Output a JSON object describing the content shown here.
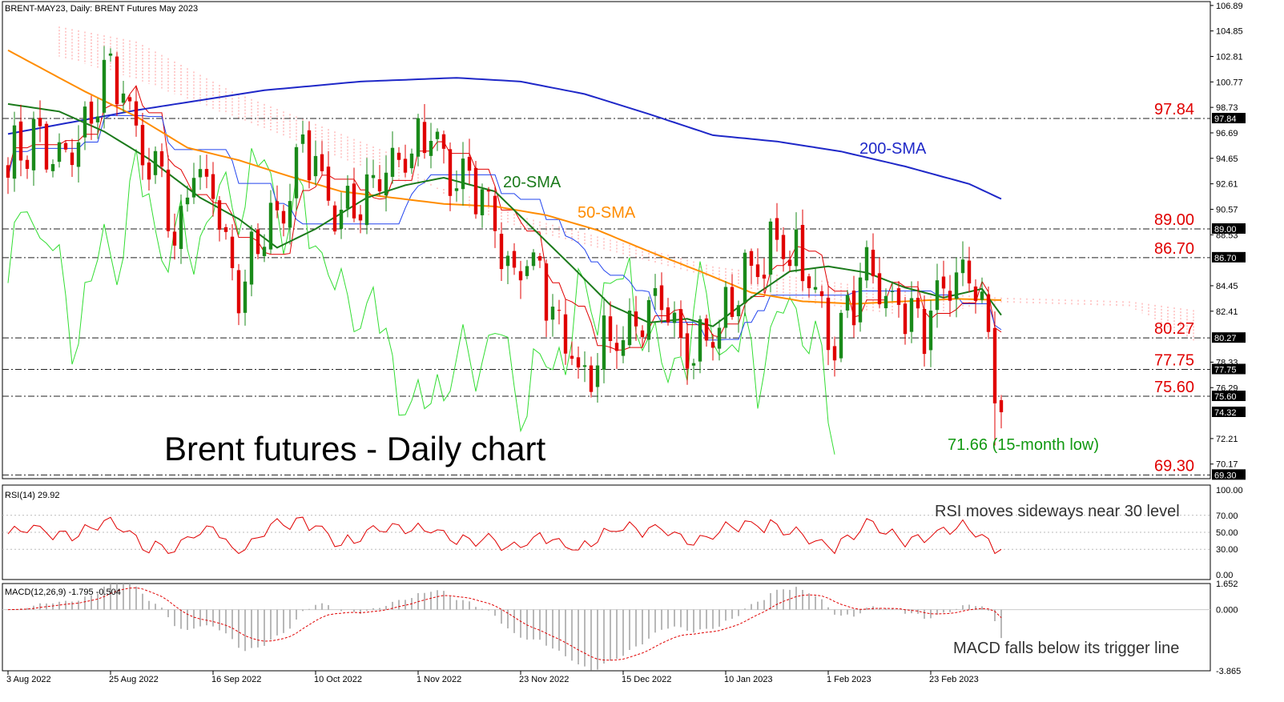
{
  "header": {
    "main_title": "BRENT-MAY23, Daily:  BRENT Futures May 2023",
    "rsi_title": "RSI(14) 29.92",
    "macd_title": "MACD(12,26,9) -1.795 -0.504"
  },
  "annotations": {
    "chart_title": "Brent futures - Daily chart",
    "sma20": "20-SMA",
    "sma50": "50-SMA",
    "sma200": "200-SMA",
    "low_note": "71.66 (15-month low)",
    "rsi_note": "RSI moves sideways near 30 level",
    "macd_note": "MACD falls below its trigger line"
  },
  "colors": {
    "bull": "#1a8a1a",
    "bear": "#e00000",
    "sma20": "#1b7a1b",
    "sma50": "#ff8c00",
    "sma200": "#1f28c8",
    "kijun": "#2244ee",
    "tenkan": "#e00000",
    "chikou": "#33dd33",
    "cloud": "#ff7777",
    "level_text": "#e00000",
    "low_text": "#119911",
    "rsi": "#e00000",
    "macd_signal": "#e00000",
    "macd_hist": "#a0a0a0"
  },
  "chart_data": {
    "type": "candlestick",
    "instrument": "BRENT-MAY23",
    "timeframe": "Daily",
    "price_axis": {
      "ylim": [
        69.0,
        107.2
      ],
      "ticks": [
        "106.89",
        "104.85",
        "102.81",
        "100.77",
        "98.73",
        "96.69",
        "94.65",
        "92.61",
        "90.57",
        "88.53",
        "84.45",
        "82.41",
        "78.33",
        "76.29",
        "72.21",
        "70.17"
      ]
    },
    "x_axis": {
      "labels": [
        {
          "text": "3 Aug 2022",
          "index": 0
        },
        {
          "text": "25 Aug 2022",
          "index": 16
        },
        {
          "text": "16 Sep 2022",
          "index": 32
        },
        {
          "text": "10 Oct 2022",
          "index": 48
        },
        {
          "text": "1 Nov 2022",
          "index": 64
        },
        {
          "text": "23 Nov 2022",
          "index": 80
        },
        {
          "text": "15 Dec 2022",
          "index": 96
        },
        {
          "text": "10 Jan 2023",
          "index": 112
        },
        {
          "text": "1 Feb 2023",
          "index": 128
        },
        {
          "text": "23 Feb 2023",
          "index": 144
        }
      ]
    },
    "levels": [
      {
        "value": 97.84,
        "label": "97.84"
      },
      {
        "value": 89.0,
        "label": "89.00"
      },
      {
        "value": 86.7,
        "label": "86.70"
      },
      {
        "value": 80.27,
        "label": "80.27"
      },
      {
        "value": 77.75,
        "label": "77.75"
      },
      {
        "value": 75.6,
        "label": "75.60"
      },
      {
        "value": 69.3,
        "label": "69.30"
      }
    ],
    "current_price": {
      "value": 74.32,
      "label": "74.32"
    },
    "sessions": 156,
    "close_anchors": [
      [
        0,
        94.2
      ],
      [
        4,
        96.5
      ],
      [
        8,
        94.0
      ],
      [
        12,
        96.5
      ],
      [
        15,
        101.5
      ],
      [
        18,
        100.6
      ],
      [
        20,
        95.5
      ],
      [
        24,
        93.0
      ],
      [
        26,
        87.0
      ],
      [
        29,
        93.5
      ],
      [
        32,
        92.0
      ],
      [
        36,
        84.0
      ],
      [
        40,
        88.5
      ],
      [
        44,
        92.0
      ],
      [
        46,
        96.2
      ],
      [
        49,
        93.0
      ],
      [
        52,
        89.5
      ],
      [
        55,
        91.5
      ],
      [
        58,
        93.8
      ],
      [
        61,
        94.5
      ],
      [
        64,
        95.5
      ],
      [
        66,
        96.5
      ],
      [
        69,
        93.0
      ],
      [
        72,
        92.5
      ],
      [
        75,
        91.0
      ],
      [
        77,
        87.5
      ],
      [
        79,
        85.0
      ],
      [
        82,
        86.5
      ],
      [
        85,
        83.0
      ],
      [
        88,
        79.0
      ],
      [
        90,
        76.5
      ],
      [
        93,
        80.5
      ],
      [
        96,
        79.5
      ],
      [
        99,
        81.0
      ],
      [
        102,
        84.5
      ],
      [
        104,
        82.0
      ],
      [
        106,
        79.0
      ],
      [
        109,
        80.0
      ],
      [
        112,
        82.0
      ],
      [
        114,
        84.5
      ],
      [
        117,
        86.5
      ],
      [
        120,
        87.5
      ],
      [
        122,
        87.0
      ],
      [
        124,
        86.0
      ],
      [
        127,
        82.0
      ],
      [
        129,
        80.0
      ],
      [
        131,
        83.0
      ],
      [
        134,
        85.5
      ],
      [
        137,
        84.0
      ],
      [
        140,
        82.5
      ],
      [
        142,
        81.0
      ],
      [
        145,
        82.5
      ],
      [
        148,
        84.5
      ],
      [
        150,
        86.0
      ],
      [
        152,
        82.0
      ],
      [
        153,
        80.0
      ],
      [
        154,
        77.0
      ],
      [
        155,
        74.32
      ]
    ],
    "sma200_anchors": [
      [
        0,
        96.6
      ],
      [
        20,
        98.5
      ],
      [
        40,
        100.1
      ],
      [
        55,
        100.8
      ],
      [
        70,
        101.1
      ],
      [
        80,
        100.8
      ],
      [
        90,
        99.8
      ],
      [
        100,
        98.2
      ],
      [
        110,
        96.5
      ],
      [
        120,
        96.0
      ],
      [
        130,
        95.2
      ],
      [
        140,
        94.0
      ],
      [
        150,
        92.6
      ],
      [
        155,
        91.4
      ]
    ],
    "sma50_anchors": [
      [
        0,
        103.3
      ],
      [
        12,
        100.0
      ],
      [
        20,
        98.0
      ],
      [
        28,
        95.5
      ],
      [
        36,
        94.5
      ],
      [
        44,
        93.2
      ],
      [
        52,
        92.0
      ],
      [
        60,
        91.5
      ],
      [
        68,
        91.0
      ],
      [
        76,
        90.8
      ],
      [
        84,
        90.1
      ],
      [
        92,
        88.9
      ],
      [
        100,
        87.2
      ],
      [
        108,
        85.6
      ],
      [
        116,
        83.9
      ],
      [
        124,
        83.2
      ],
      [
        132,
        83.0
      ],
      [
        140,
        83.2
      ],
      [
        148,
        83.4
      ],
      [
        155,
        83.3
      ]
    ],
    "sma20_anchors": [
      [
        0,
        99.0
      ],
      [
        8,
        98.4
      ],
      [
        15,
        96.8
      ],
      [
        22,
        94.6
      ],
      [
        30,
        91.5
      ],
      [
        36,
        89.8
      ],
      [
        42,
        87.5
      ],
      [
        48,
        89.0
      ],
      [
        56,
        91.5
      ],
      [
        62,
        92.5
      ],
      [
        68,
        93.1
      ],
      [
        76,
        92.0
      ],
      [
        82,
        89.0
      ],
      [
        88,
        86.0
      ],
      [
        94,
        82.9
      ],
      [
        100,
        81.5
      ],
      [
        106,
        81.8
      ],
      [
        110,
        81.2
      ],
      [
        116,
        83.5
      ],
      [
        122,
        85.6
      ],
      [
        128,
        86.0
      ],
      [
        134,
        85.5
      ],
      [
        140,
        84.3
      ],
      [
        146,
        83.5
      ],
      [
        152,
        84.2
      ],
      [
        155,
        82.1
      ]
    ],
    "rsi": {
      "value": 29.92,
      "ticks": [
        "100.00",
        "70.00",
        "50.00",
        "30.00",
        "0.00"
      ],
      "ylim": [
        0,
        100
      ],
      "levels": [
        70,
        50,
        30
      ]
    },
    "macd": {
      "macd": -1.795,
      "signal": -0.504,
      "ticks": [
        "1.652",
        "0.000",
        "-3.865"
      ],
      "ylim": [
        -3.865,
        1.652
      ]
    }
  }
}
